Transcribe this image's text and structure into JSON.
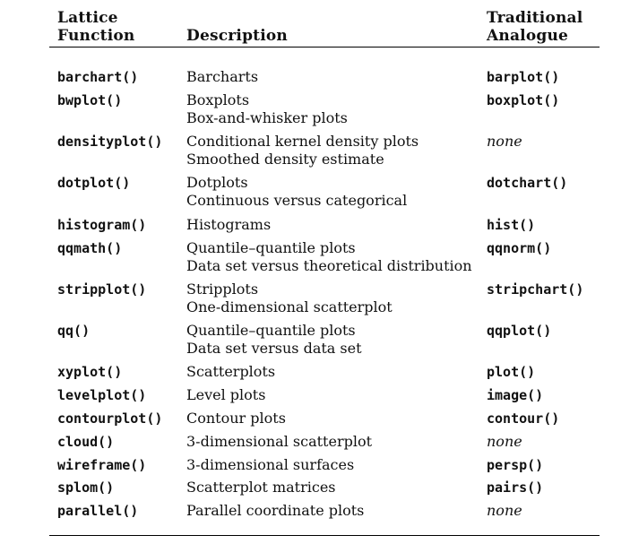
{
  "header": {
    "function_line1": "Lattice",
    "function_line2": "Function",
    "description": "Description",
    "analogue_line1": "Traditional",
    "analogue_line2": "Analogue"
  },
  "rows": [
    {
      "function": "barchart()",
      "description": [
        "Barcharts"
      ],
      "analogue": "barplot()"
    },
    {
      "function": "bwplot()",
      "description": [
        "Boxplots",
        "Box-and-whisker plots"
      ],
      "analogue": "boxplot()"
    },
    {
      "function": "densityplot()",
      "description": [
        "Conditional kernel density plots",
        "Smoothed density estimate"
      ],
      "analogue": "none"
    },
    {
      "function": "dotplot()",
      "description": [
        "Dotplots",
        "Continuous versus categorical"
      ],
      "analogue": "dotchart()"
    },
    {
      "function": "histogram()",
      "description": [
        "Histograms"
      ],
      "analogue": "hist()"
    },
    {
      "function": "qqmath()",
      "description": [
        "Quantile–quantile plots",
        "Data set versus theoretical distribution"
      ],
      "analogue": "qqnorm()"
    },
    {
      "function": "stripplot()",
      "description": [
        "Stripplots",
        "One-dimensional scatterplot"
      ],
      "analogue": "stripchart()"
    },
    {
      "function": "qq()",
      "description": [
        "Quantile–quantile plots",
        "Data set versus data set"
      ],
      "analogue": "qqplot()"
    },
    {
      "function": "xyplot()",
      "description": [
        "Scatterplots"
      ],
      "analogue": "plot()"
    },
    {
      "function": "levelplot()",
      "description": [
        "Level plots"
      ],
      "analogue": "image()"
    },
    {
      "function": "contourplot()",
      "description": [
        "Contour plots"
      ],
      "analogue": "contour()"
    },
    {
      "function": "cloud()",
      "description": [
        "3-dimensional scatterplot"
      ],
      "analogue": "none"
    },
    {
      "function": "wireframe()",
      "description": [
        "3-dimensional surfaces"
      ],
      "analogue": "persp()"
    },
    {
      "function": "splom()",
      "description": [
        "Scatterplot matrices"
      ],
      "analogue": "pairs()"
    },
    {
      "function": "parallel()",
      "description": [
        "Parallel coordinate plots"
      ],
      "analogue": "none"
    }
  ]
}
